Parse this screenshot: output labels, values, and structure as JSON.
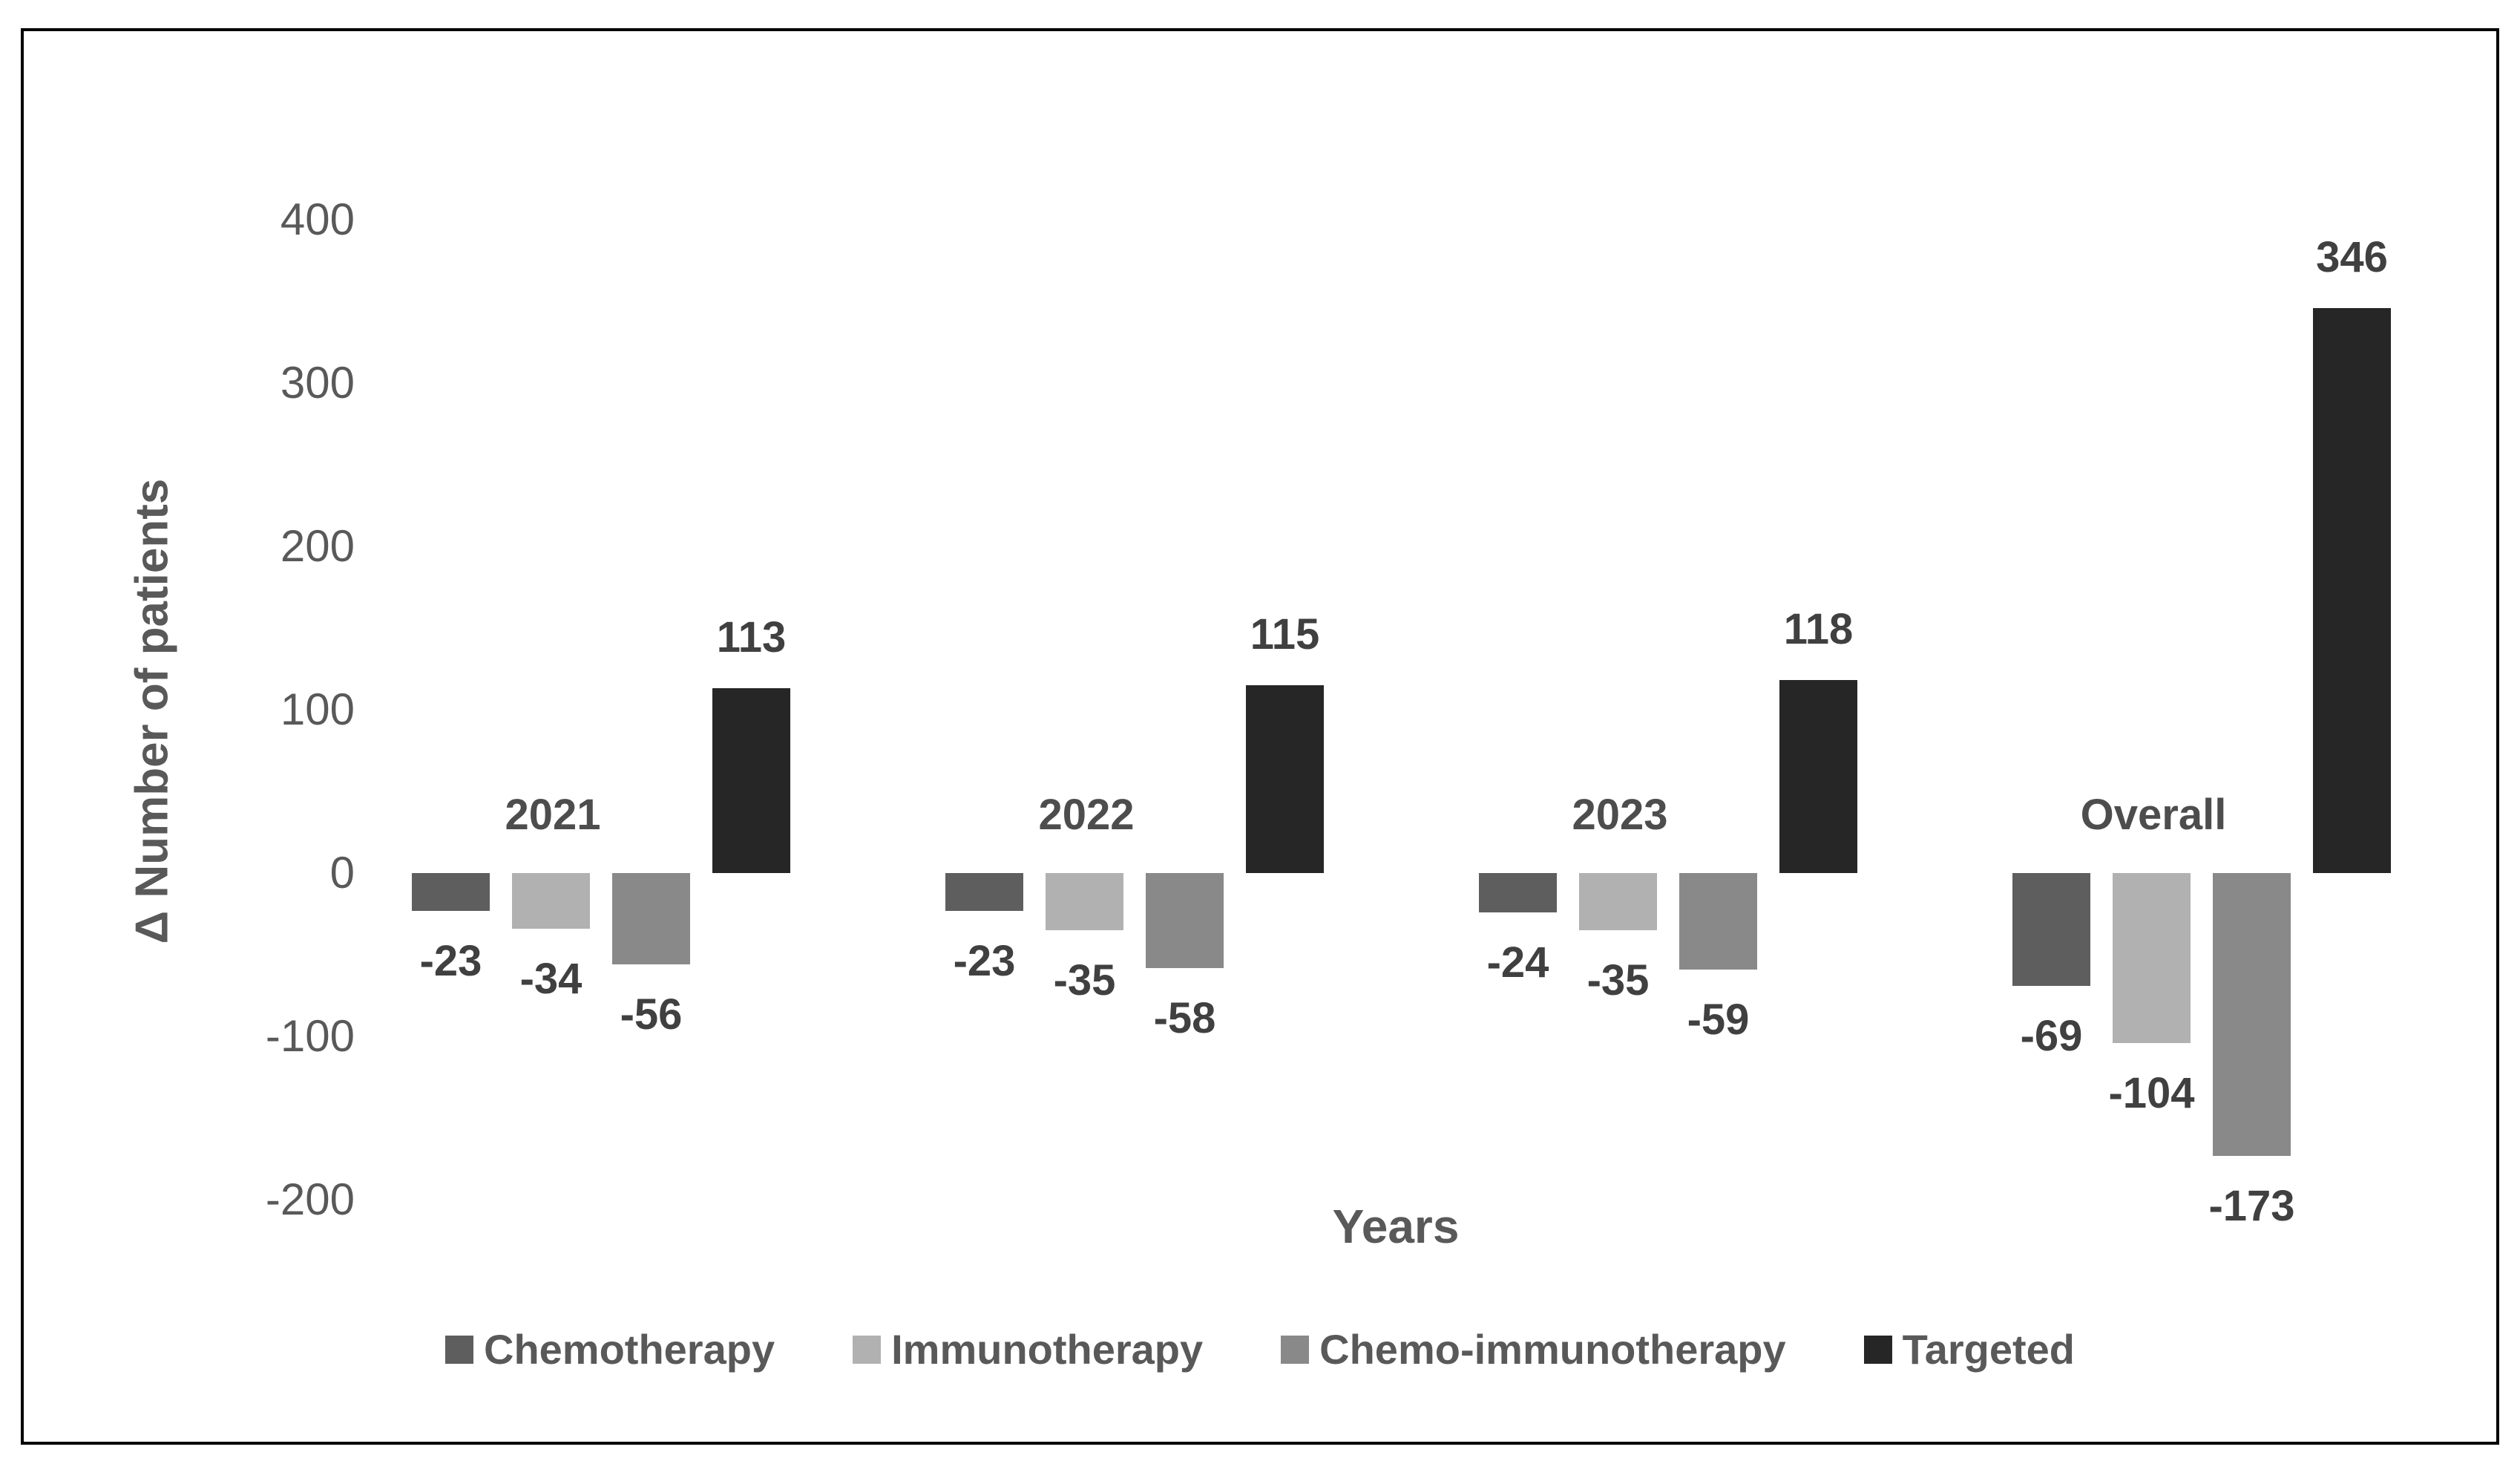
{
  "chart_data": {
    "type": "bar",
    "title": "",
    "ylabel": "Δ Number of patients",
    "xlabel": "Years",
    "categories": [
      "2021",
      "2022",
      "2023",
      "Overall"
    ],
    "series": [
      {
        "name": "Chemotherapy",
        "color": "#5e5e5e",
        "values": [
          -23,
          -23,
          -24,
          -69
        ]
      },
      {
        "name": "Immunotherapy",
        "color": "#b1b1b1",
        "values": [
          -34,
          -35,
          -35,
          -104
        ]
      },
      {
        "name": "Chemo-immunotherapy",
        "color": "#898989",
        "values": [
          -56,
          -58,
          -59,
          -173
        ]
      },
      {
        "name": "Targeted",
        "color": "#262626",
        "values": [
          113,
          115,
          118,
          346
        ]
      }
    ],
    "yticks": [
      400,
      300,
      200,
      100,
      0,
      -100,
      -200
    ],
    "ylim": [
      -200,
      400
    ],
    "grid": false,
    "data_labels": true,
    "legend_position": "bottom"
  }
}
